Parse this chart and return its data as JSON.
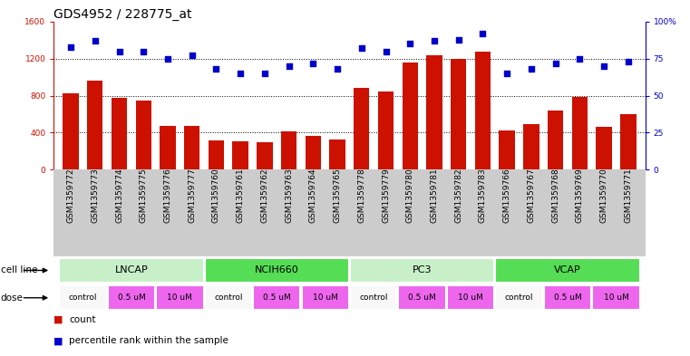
{
  "title": "GDS4952 / 228775_at",
  "samples": [
    "GSM1359772",
    "GSM1359773",
    "GSM1359774",
    "GSM1359775",
    "GSM1359776",
    "GSM1359777",
    "GSM1359760",
    "GSM1359761",
    "GSM1359762",
    "GSM1359763",
    "GSM1359764",
    "GSM1359765",
    "GSM1359778",
    "GSM1359779",
    "GSM1359780",
    "GSM1359781",
    "GSM1359782",
    "GSM1359783",
    "GSM1359766",
    "GSM1359767",
    "GSM1359768",
    "GSM1359769",
    "GSM1359770",
    "GSM1359771"
  ],
  "counts": [
    820,
    960,
    780,
    750,
    470,
    470,
    310,
    300,
    295,
    410,
    360,
    320,
    880,
    840,
    1160,
    1240,
    1200,
    1280,
    420,
    490,
    640,
    790,
    460,
    600
  ],
  "percentiles": [
    83,
    87,
    80,
    80,
    75,
    77,
    68,
    65,
    65,
    70,
    72,
    68,
    82,
    80,
    85,
    87,
    88,
    92,
    65,
    68,
    72,
    75,
    70,
    73
  ],
  "cell_lines": [
    {
      "name": "LNCAP",
      "start": 0,
      "end": 6,
      "color": "#c8f0c8"
    },
    {
      "name": "NCIH660",
      "start": 6,
      "end": 12,
      "color": "#55dd55"
    },
    {
      "name": "PC3",
      "start": 12,
      "end": 18,
      "color": "#c8f0c8"
    },
    {
      "name": "VCAP",
      "start": 18,
      "end": 24,
      "color": "#55dd55"
    }
  ],
  "dose_defs": [
    [
      "control",
      0,
      2,
      "#f8f8f8"
    ],
    [
      "0.5 uM",
      2,
      4,
      "#ee66ee"
    ],
    [
      "10 uM",
      4,
      6,
      "#ee66ee"
    ],
    [
      "control",
      6,
      8,
      "#f8f8f8"
    ],
    [
      "0.5 uM",
      8,
      10,
      "#ee66ee"
    ],
    [
      "10 uM",
      10,
      12,
      "#ee66ee"
    ],
    [
      "control",
      12,
      14,
      "#f8f8f8"
    ],
    [
      "0.5 uM",
      14,
      16,
      "#ee66ee"
    ],
    [
      "10 uM",
      16,
      18,
      "#ee66ee"
    ],
    [
      "control",
      18,
      20,
      "#f8f8f8"
    ],
    [
      "0.5 uM",
      20,
      22,
      "#ee66ee"
    ],
    [
      "10 uM",
      22,
      24,
      "#ee66ee"
    ]
  ],
  "bar_color": "#cc1100",
  "dot_color": "#0000cc",
  "left_ylim": [
    0,
    1600
  ],
  "left_yticks": [
    0,
    400,
    800,
    1200,
    1600
  ],
  "right_ylim": [
    0,
    100
  ],
  "right_yticks": [
    0,
    25,
    50,
    75,
    100
  ],
  "grid_values": [
    400,
    800,
    1200
  ],
  "sample_bg_color": "#cccccc",
  "cell_line_bg_color": "#e8e8e8",
  "dose_bg_color": "#e8e8e8",
  "title_fontsize": 10,
  "tick_fontsize": 6.5,
  "sample_fontsize": 6.5,
  "label_fontsize": 8,
  "legend_fontsize": 7.5
}
